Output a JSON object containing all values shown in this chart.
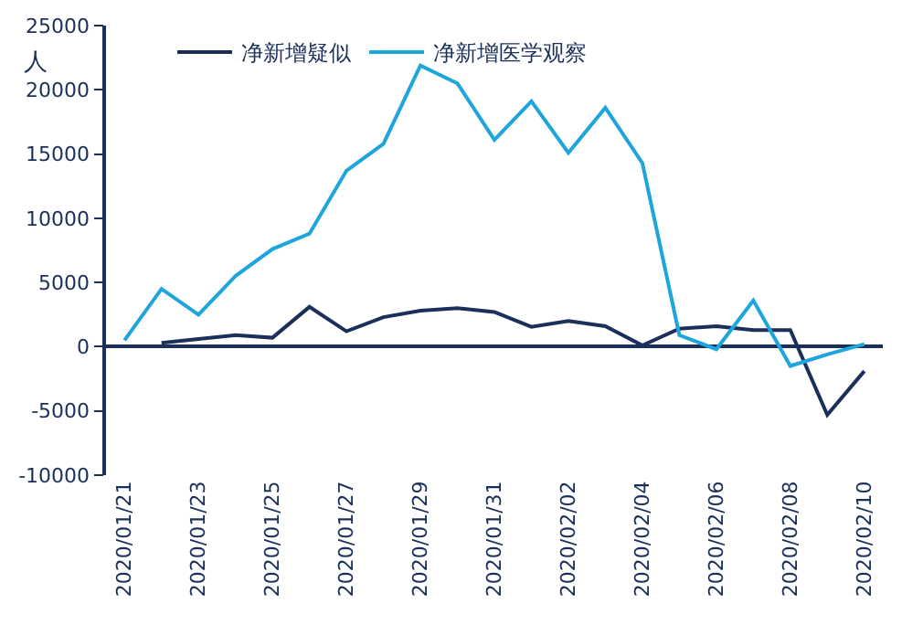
{
  "chart_data": {
    "type": "line",
    "ylabel": "人",
    "legend": "top",
    "x": [
      "2020-01-21",
      "2020-01-22",
      "2020-01-23",
      "2020-01-24",
      "2020-01-25",
      "2020-01-26",
      "2020-01-27",
      "2020-01-28",
      "2020-01-29",
      "2020-01-30",
      "2020-01-31",
      "2020-02-01",
      "2020-02-02",
      "2020-02-03",
      "2020-02-04",
      "2020-02-05",
      "2020-02-06",
      "2020-02-07",
      "2020-02-08",
      "2020-02-09",
      "2020-02-10"
    ],
    "series": [
      {
        "name": "净新增疑似",
        "color": "#1b2f5b",
        "values": [
          null,
          300,
          600,
          900,
          700,
          3100,
          1200,
          2300,
          2800,
          3000,
          2700,
          1550,
          2000,
          1600,
          100,
          1400,
          1600,
          1300,
          1300,
          -5300,
          -1900
        ]
      },
      {
        "name": "净新增医学观察",
        "color": "#1ea5dc",
        "values": [
          500,
          4500,
          2500,
          5500,
          7600,
          8800,
          13700,
          15800,
          21900,
          20500,
          16100,
          19100,
          15100,
          18600,
          14300,
          900,
          -200,
          3600,
          -1500,
          -600,
          200
        ]
      }
    ],
    "xlim": [
      "2020-01-20T12:00",
      "2020-02-10T12:00"
    ],
    "xticks": [
      {
        "value": "2020-01-21",
        "label": "2020/01/21"
      },
      {
        "value": "2020-01-23",
        "label": "2020/01/23"
      },
      {
        "value": "2020-01-25",
        "label": "2020/01/25"
      },
      {
        "value": "2020-01-27",
        "label": "2020/01/27"
      },
      {
        "value": "2020-01-29",
        "label": "2020/01/29"
      },
      {
        "value": "2020-01-31",
        "label": "2020/01/31"
      },
      {
        "value": "2020-02-02",
        "label": "2020/02/02"
      },
      {
        "value": "2020-02-04",
        "label": "2020/02/04"
      },
      {
        "value": "2020-02-06",
        "label": "2020/02/06"
      },
      {
        "value": "2020-02-08",
        "label": "2020/02/08"
      },
      {
        "value": "2020-02-10",
        "label": "2020/02/10"
      }
    ],
    "ylim": [
      -10000,
      25000
    ],
    "yticks": [
      -10000,
      -5000,
      0,
      5000,
      10000,
      15000,
      20000,
      25000
    ],
    "marker": "none",
    "line_style": "solid"
  }
}
